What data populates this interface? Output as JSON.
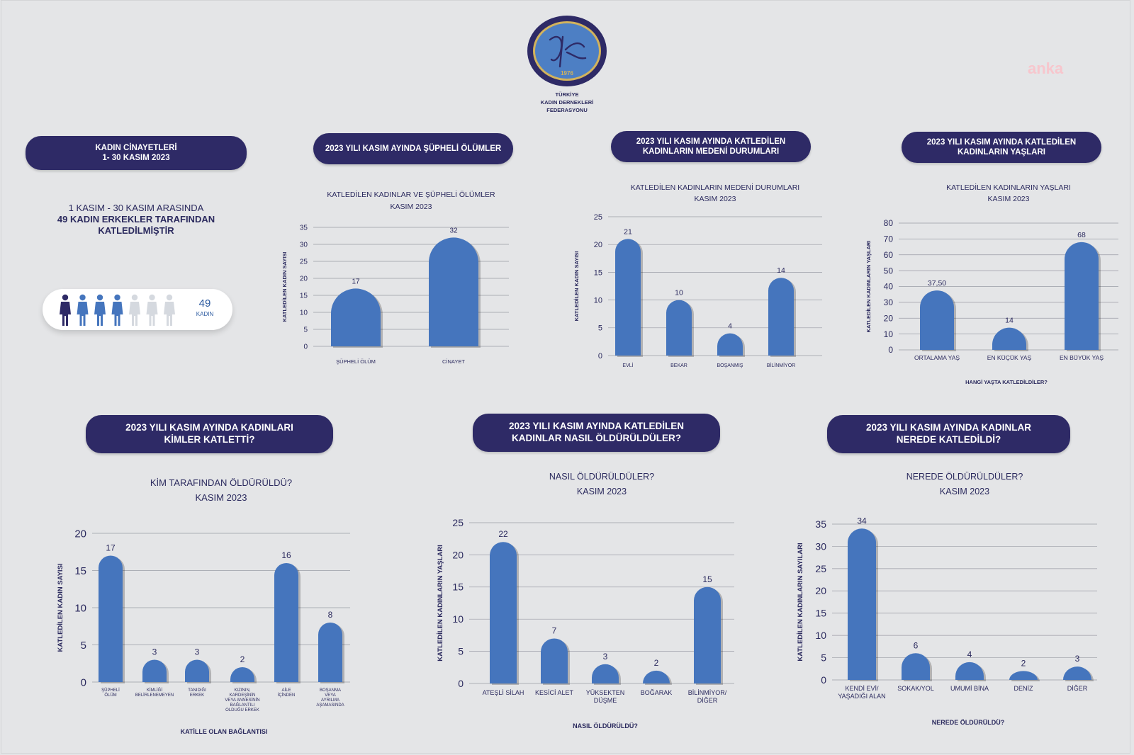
{
  "logo": {
    "lines": [
      "TÜRKİYE",
      "KADIN DERNEKLERİ",
      "FEDERASYONU"
    ],
    "year": "1976"
  },
  "watermark": "anka",
  "colors": {
    "navy": "#2e2a66",
    "bar": "#4575bd",
    "text": "#2b2a5e",
    "bg": "#e4e5e7",
    "fig_dark": "#2e2a66",
    "fig_mid": "#4575bd",
    "fig_light": "#d5d9df"
  },
  "headers": {
    "main": "KADIN CİNAYETLERİ\n1- 30 KASIM 2023",
    "suspicious": "2023 YILI KASIM AYINDA ŞÜPHELİ ÖLÜMLER",
    "marital": "2023 YILI KASIM AYINDA KATLEDİLEN\nKADINLARIN MEDENİ DURUMLARI",
    "ages": "2023 YILI KASIM AYINDA KATLEDİLEN\nKADINLARIN YAŞLARI",
    "who": "2023 YILI KASIM AYINDA KADINLARI\nKİMLER KATLETTİ?",
    "how": "2023 YILI KASIM AYINDA KATLEDİLEN\nKADINLAR NASIL ÖLDÜRÜLDÜLER?",
    "where": "2023 YILI KASIM AYINDA KADINLAR\nNEREDE KATLEDİLDİ?"
  },
  "intro": {
    "line1": "1 KASIM - 30 KASIM ARASINDA",
    "line2": "49 KADIN ERKEKLER TARAFINDAN",
    "line3": "KATLEDİLMİŞTİR"
  },
  "people": {
    "count": "49",
    "unit": "KADIN",
    "figures": [
      "dark",
      "mid",
      "mid",
      "mid",
      "light",
      "light",
      "light"
    ]
  },
  "chart_data": [
    {
      "id": "suspicious",
      "type": "bar",
      "title": "KATLEDİLEN KADINLAR VE ŞÜPHELİ ÖLÜMLER\nKASIM 2023",
      "categories": [
        "ŞÜPHELİ ÖLÜM",
        "CİNAYET"
      ],
      "values": [
        17,
        32
      ],
      "value_labels": [
        "17",
        "32"
      ],
      "ylabel": "KATLEDİLEN KADIN SAYISI",
      "xlabel": "",
      "ylim": [
        0,
        35
      ],
      "yticks": [
        0,
        5,
        10,
        15,
        20,
        25,
        30,
        35
      ]
    },
    {
      "id": "marital",
      "type": "bar",
      "title": "KATLEDİLEN KADINLARIN MEDENİ DURUMLARI\nKASIM 2023",
      "categories": [
        "EVLİ",
        "BEKAR",
        "BOŞANMIŞ",
        "BİLİNMİYOR"
      ],
      "values": [
        21,
        10,
        4,
        14
      ],
      "value_labels": [
        "21",
        "10",
        "4",
        "14"
      ],
      "ylabel": "KATLEDİLEN KADIN SAYISI",
      "xlabel": "",
      "ylim": [
        0,
        25
      ],
      "yticks": [
        0,
        5,
        10,
        15,
        20,
        25
      ]
    },
    {
      "id": "ages",
      "type": "bar",
      "title": "KATLEDİLEN KADINLARIN YAŞLARI\nKASIM 2023",
      "categories": [
        "ORTALAMA YAŞ",
        "EN KÜÇÜK YAŞ",
        "EN BÜYÜK YAŞ"
      ],
      "values": [
        37.5,
        14,
        68
      ],
      "value_labels": [
        "37,50",
        "14",
        "68"
      ],
      "ylabel": "KATLEDİLEN KADINLARIN YAŞLARI",
      "xlabel": "HANGİ YAŞTA KATLEDİLDİLER?",
      "ylim": [
        0,
        80
      ],
      "yticks": [
        0,
        10,
        20,
        30,
        40,
        50,
        60,
        70,
        80
      ]
    },
    {
      "id": "who",
      "type": "bar",
      "title": "KİM TARAFINDAN ÖLDÜRÜLDÜ?\nKASIM 2023",
      "categories": [
        "ŞÜPHELİ\nÖLÜM",
        "KİMLİĞİ\nBELİRLENEMEYEN",
        "TANIDIĞI\nERKEK",
        "KIZININ,\nKARDEŞİNİN\nVEYA ANNESİNİN\nBAĞLANTILI\nOLDUĞU ERKEK",
        "AİLE\nİÇİNDEN",
        "BOŞANMA\nVEYA\nAYRILMA\nAŞAMASINDA"
      ],
      "values": [
        17,
        3,
        3,
        2,
        16,
        8
      ],
      "value_labels": [
        "17",
        "3",
        "3",
        "2",
        "16",
        "8"
      ],
      "ylabel": "KATLEDİLEN KADIN SAYISI",
      "xlabel": "KATİLLE OLAN BAĞLANTISI",
      "ylim": [
        0,
        20
      ],
      "yticks": [
        0,
        5,
        10,
        15,
        20
      ]
    },
    {
      "id": "how",
      "type": "bar",
      "title": "NASIL ÖLDÜRÜLDÜLER?\nKASIM 2023",
      "categories": [
        "ATEŞLİ SİLAH",
        "KESİCİ ALET",
        "YÜKSEKTEN\nDÜŞME",
        "BOĞARAK",
        "BİLİNMİYOR/\nDİĞER"
      ],
      "values": [
        22,
        7,
        3,
        2,
        15
      ],
      "value_labels": [
        "22",
        "7",
        "3",
        "2",
        "15"
      ],
      "ylabel": "KATLEDİLEN KADINLARIN YAŞLARI",
      "xlabel": "NASIL ÖLDÜRÜLDÜ?",
      "ylim": [
        0,
        25
      ],
      "yticks": [
        0,
        5,
        10,
        15,
        20,
        25
      ]
    },
    {
      "id": "where",
      "type": "bar",
      "title": "NEREDE ÖLDÜRÜLDÜLER?\nKASIM 2023",
      "categories": [
        "KENDİ EVİ/\nYAŞADIĞI ALAN",
        "SOKAK/YOL",
        "UMUMİ BİNA",
        "DENİZ",
        "DİĞER"
      ],
      "values": [
        34,
        6,
        4,
        2,
        3
      ],
      "value_labels": [
        "34",
        "6",
        "4",
        "2",
        "3"
      ],
      "ylabel": "KATLEDİLEN KADINLARIN SAYILARI",
      "xlabel": "NEREDE ÖLDÜRÜLDÜ?",
      "ylim": [
        0,
        35
      ],
      "yticks": [
        0,
        5,
        10,
        15,
        20,
        25,
        30,
        35
      ]
    }
  ]
}
